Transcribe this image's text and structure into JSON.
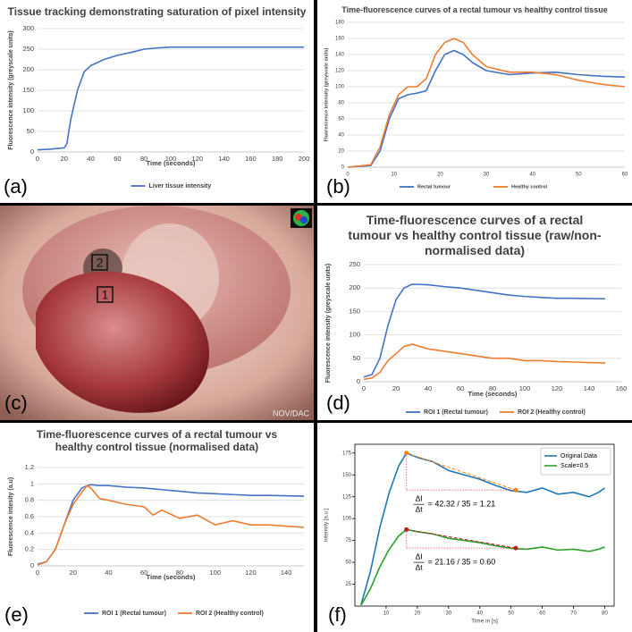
{
  "panel_labels": [
    "(a)",
    "(b)",
    "(c)",
    "(d)",
    "(e)",
    "(f)"
  ],
  "photo": {
    "roi_labels": [
      "2",
      "1"
    ],
    "watermark": "NOV/DAC"
  },
  "chart_data": [
    {
      "type": "line",
      "title": "Tissue tracking demonstrating saturation of pixel intensity",
      "xlabel": "Time (seconds)",
      "ylabel": "Fluorescence intensity (greyscale units)",
      "x": [
        0,
        10,
        20,
        22,
        25,
        30,
        35,
        40,
        50,
        60,
        70,
        80,
        90,
        100,
        120,
        150,
        200
      ],
      "series": [
        {
          "name": "Liver tissue intensity",
          "color": "#4472c4",
          "values": [
            5,
            7,
            10,
            20,
            80,
            150,
            195,
            210,
            225,
            235,
            242,
            250,
            253,
            255,
            255,
            255,
            255
          ]
        }
      ],
      "xlim": [
        0,
        200
      ],
      "ylim": [
        0,
        300
      ],
      "xticks": [
        0,
        20,
        40,
        60,
        80,
        100,
        120,
        140,
        160,
        180,
        200
      ],
      "yticks": [
        0,
        50,
        100,
        150,
        200,
        250,
        300
      ],
      "grid": true,
      "legend": "bottom"
    },
    {
      "type": "line",
      "title": "Time-fluorescence curves of a rectal tumour vs healthy control tissue",
      "ylabel": "Fluorescence intensity (greyscale units)",
      "x": [
        0,
        5,
        7,
        9,
        11,
        13,
        15,
        17,
        19,
        21,
        23,
        25,
        27,
        30,
        35,
        40,
        45,
        50,
        55,
        60
      ],
      "series": [
        {
          "name": "Rectal tumour",
          "color": "#4472c4",
          "values": [
            0,
            2,
            20,
            60,
            85,
            90,
            92,
            95,
            120,
            140,
            145,
            140,
            130,
            120,
            115,
            117,
            118,
            115,
            113,
            112
          ]
        },
        {
          "name": "Healthy control",
          "color": "#ed7d31",
          "values": [
            0,
            3,
            25,
            65,
            90,
            100,
            100,
            110,
            140,
            155,
            160,
            155,
            140,
            125,
            118,
            118,
            115,
            108,
            103,
            100
          ]
        }
      ],
      "xlim": [
        0,
        60
      ],
      "ylim": [
        0,
        180
      ],
      "xticks": [
        0,
        10,
        20,
        30,
        40,
        50,
        60
      ],
      "yticks": [
        0,
        20,
        40,
        60,
        80,
        100,
        120,
        140,
        160,
        180
      ],
      "grid": true,
      "legend": "bottom"
    },
    {
      "type": "line",
      "title": "Time-fluorescence curves of a rectal tumour vs healthy control tissue (raw/non-normalised data)",
      "xlabel": "Time (seconds)",
      "ylabel": "Fluorescence intensity (greyscale units)",
      "x": [
        0,
        5,
        10,
        15,
        20,
        25,
        30,
        40,
        50,
        60,
        70,
        80,
        90,
        100,
        110,
        120,
        130,
        150
      ],
      "series": [
        {
          "name": "ROI 1 (Rectal tumour)",
          "color": "#4472c4",
          "values": [
            10,
            15,
            50,
            120,
            175,
            200,
            208,
            207,
            203,
            200,
            195,
            190,
            185,
            182,
            180,
            178,
            178,
            177
          ]
        },
        {
          "name": "ROI 2 (Healthy control)",
          "color": "#ed7d31",
          "values": [
            5,
            8,
            20,
            45,
            60,
            75,
            80,
            70,
            65,
            60,
            55,
            50,
            50,
            45,
            45,
            43,
            42,
            40
          ]
        }
      ],
      "xlim": [
        0,
        160
      ],
      "ylim": [
        0,
        250
      ],
      "xticks": [
        0,
        20,
        40,
        60,
        80,
        100,
        120,
        140,
        160
      ],
      "yticks": [
        0,
        50,
        100,
        150,
        200,
        250
      ],
      "grid": true,
      "legend": "bottom"
    },
    {
      "type": "line",
      "title": "Time-fluorescence curves of a rectal tumour vs healthy control tissue (normalised data)",
      "xlabel": "Time (seconds)",
      "ylabel": "Fluorescence intesity (a.u)",
      "x": [
        0,
        5,
        10,
        15,
        20,
        25,
        28,
        30,
        35,
        40,
        50,
        60,
        65,
        70,
        80,
        90,
        100,
        110,
        120,
        130,
        150
      ],
      "series": [
        {
          "name": "ROI 1 (Rectal tumour)",
          "color": "#4472c4",
          "values": [
            0.02,
            0.05,
            0.2,
            0.5,
            0.8,
            0.95,
            0.98,
            0.99,
            0.98,
            0.98,
            0.96,
            0.95,
            0.94,
            0.93,
            0.91,
            0.89,
            0.88,
            0.87,
            0.86,
            0.86,
            0.85
          ]
        },
        {
          "name": "ROI 2 (Healthy control)",
          "color": "#ed7d31",
          "values": [
            0.01,
            0.05,
            0.2,
            0.5,
            0.75,
            0.9,
            0.98,
            0.95,
            0.82,
            0.8,
            0.75,
            0.72,
            0.62,
            0.68,
            0.58,
            0.62,
            0.5,
            0.55,
            0.5,
            0.5,
            0.47
          ]
        }
      ],
      "xlim": [
        0,
        150
      ],
      "ylim": [
        0,
        1.2
      ],
      "xticks": [
        0,
        20,
        40,
        60,
        80,
        100,
        120,
        140
      ],
      "yticks": [
        0,
        0.2,
        0.4,
        0.6,
        0.8,
        1,
        1.2
      ],
      "grid": true,
      "legend": "bottom"
    },
    {
      "type": "line",
      "xlabel": "Time in [s]",
      "ylabel": "Intensity [a.u.]",
      "x": [
        2,
        5,
        8,
        11,
        14,
        16.5,
        20,
        25,
        30,
        35,
        40,
        45,
        50,
        55,
        60,
        65,
        70,
        75,
        78,
        80
      ],
      "series": [
        {
          "name": "Original Data",
          "color": "#1f77b4",
          "values": [
            2,
            40,
            90,
            130,
            160,
            175,
            170,
            165,
            155,
            150,
            145,
            138,
            132,
            130,
            135,
            128,
            130,
            125,
            130,
            135
          ]
        },
        {
          "name": "Scale=0.5",
          "color": "#2ca02c",
          "values": [
            1,
            20,
            45,
            65,
            80,
            87.5,
            85,
            82.5,
            77.5,
            75,
            72.5,
            69,
            66,
            65,
            67.5,
            64,
            65,
            62.5,
            65,
            67.5
          ]
        }
      ],
      "xlim": [
        0,
        83
      ],
      "ylim": [
        0,
        185
      ],
      "xticks": [
        10,
        20,
        30,
        40,
        50,
        60,
        70,
        80
      ],
      "yticks": [
        25,
        50,
        75,
        100,
        125,
        150,
        175
      ],
      "grid": false,
      "legend": "upper right",
      "annotations": [
        {
          "x1": 16.5,
          "y1": 175,
          "x2": 51.5,
          "y2": 132.68,
          "color": "#ff7f0e",
          "numerator": "ΔI",
          "denominator": "Δt",
          "text": "= 42.32 / 35 = 1.21"
        },
        {
          "x1": 16.5,
          "y1": 87.5,
          "x2": 51.5,
          "y2": 66.34,
          "color": "#b22222",
          "numerator": "ΔI",
          "denominator": "Δt",
          "text": "= 21.16 / 35 = 0.60"
        }
      ]
    }
  ]
}
